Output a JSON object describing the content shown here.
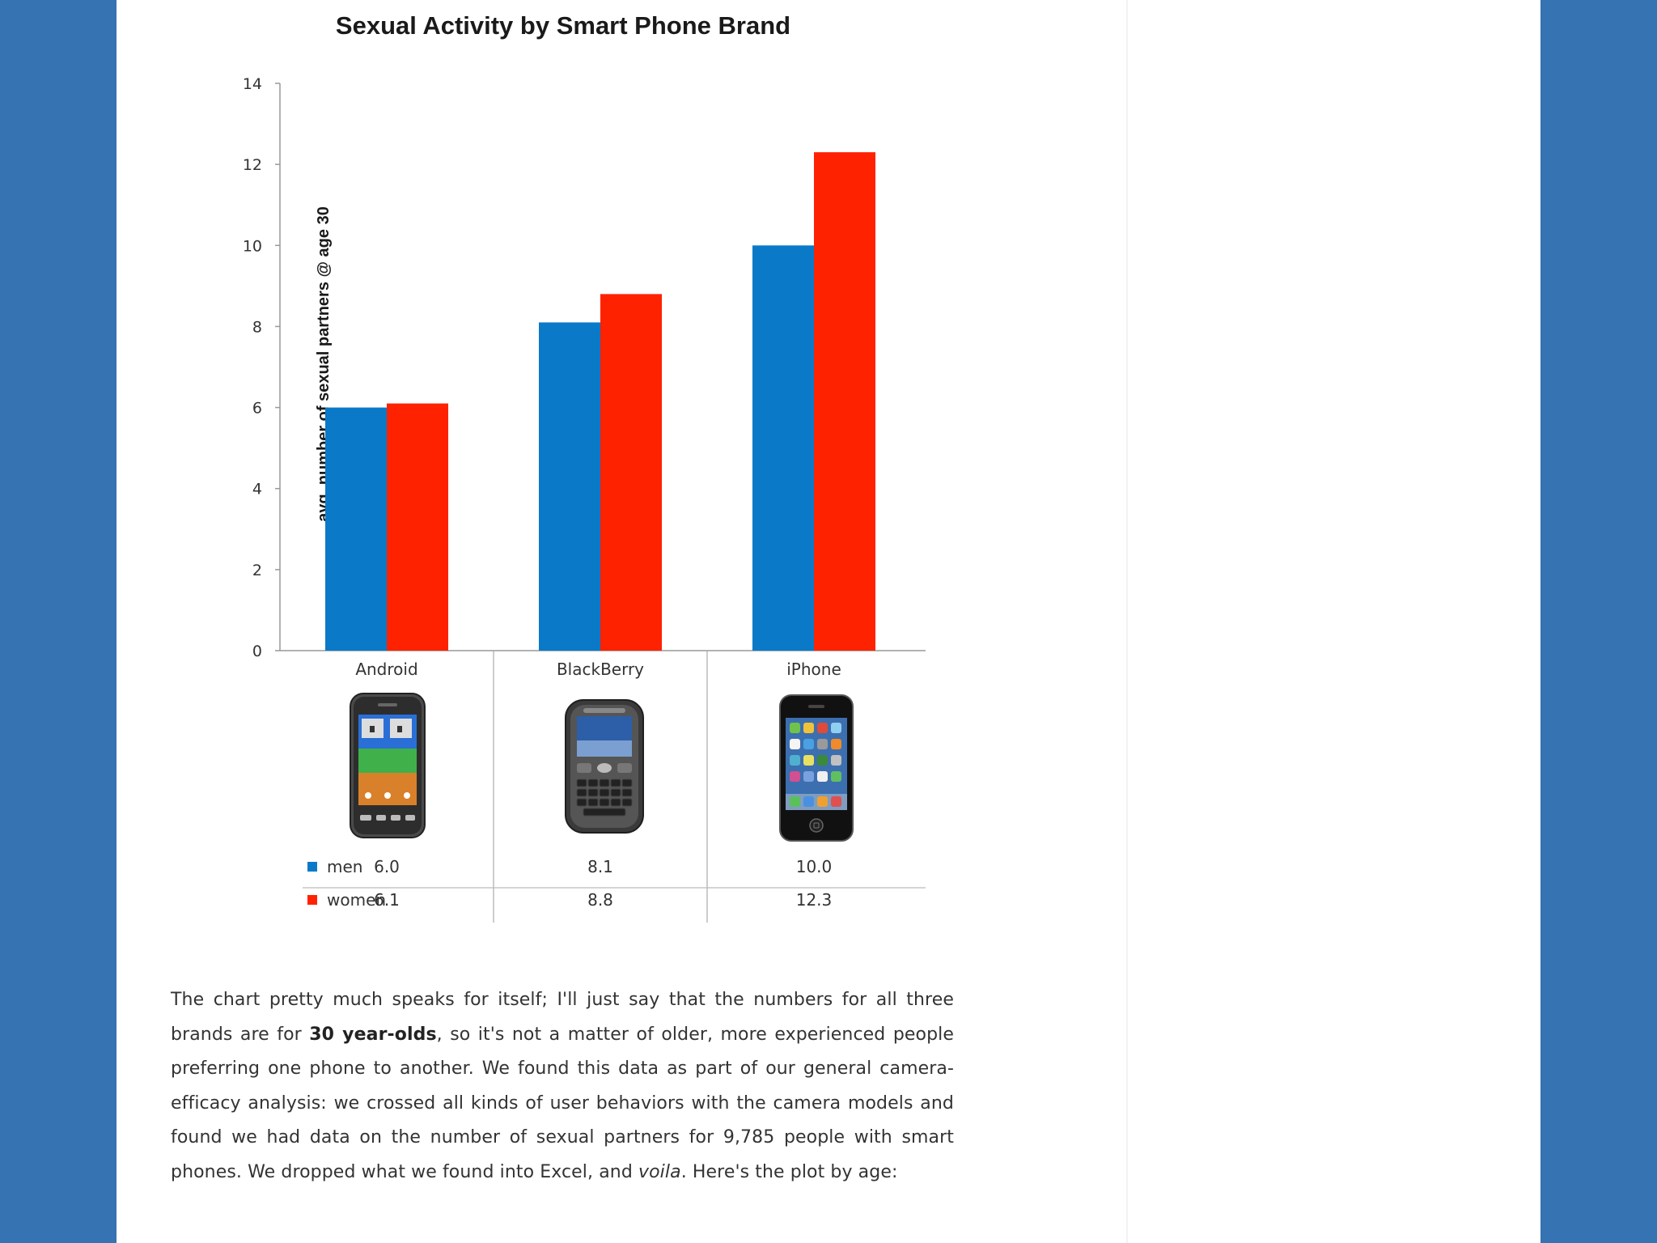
{
  "chart_data": {
    "type": "bar",
    "title": "Sexual Activity by Smart Phone Brand",
    "ylabel": "avg. number of sexual partners @ age 30",
    "xlabel": "",
    "ylim": [
      0,
      14
    ],
    "yticks": [
      0,
      2,
      4,
      6,
      8,
      10,
      12,
      14
    ],
    "categories": [
      "Android",
      "BlackBerry",
      "iPhone"
    ],
    "series": [
      {
        "name": "men",
        "color": "#0a7ac8",
        "values": [
          6.0,
          8.1,
          10.0
        ],
        "labels": [
          "6.0",
          "8.1",
          "10.0"
        ]
      },
      {
        "name": "women",
        "color": "#ff2200",
        "values": [
          6.1,
          8.8,
          12.3
        ],
        "labels": [
          "6.1",
          "8.8",
          "12.3"
        ]
      }
    ],
    "grid": false,
    "data_table": true,
    "category_icons": [
      "android-phone-icon",
      "blackberry-phone-icon",
      "iphone-icon"
    ]
  },
  "article": {
    "p1_before": "The chart pretty much speaks for itself; I'll just say that the numbers for all three brands are for ",
    "p1_bold": "30 year-olds",
    "p1_middle": ", so it's not a matter of older, more experienced people preferring one phone to another. We found this data as part of our general camera-efficacy analysis: we crossed all kinds of user behaviors with the camera models and found we had data on the number of sexual partners for 9,785 people with smart phones. We dropped what we found into Excel, and ",
    "p1_italic": "voila",
    "p1_after": ". Here's the plot by age:"
  },
  "colors": {
    "background": "#3673b2",
    "page": "#ffffff",
    "men": "#0a7ac8",
    "women": "#ff2200"
  }
}
